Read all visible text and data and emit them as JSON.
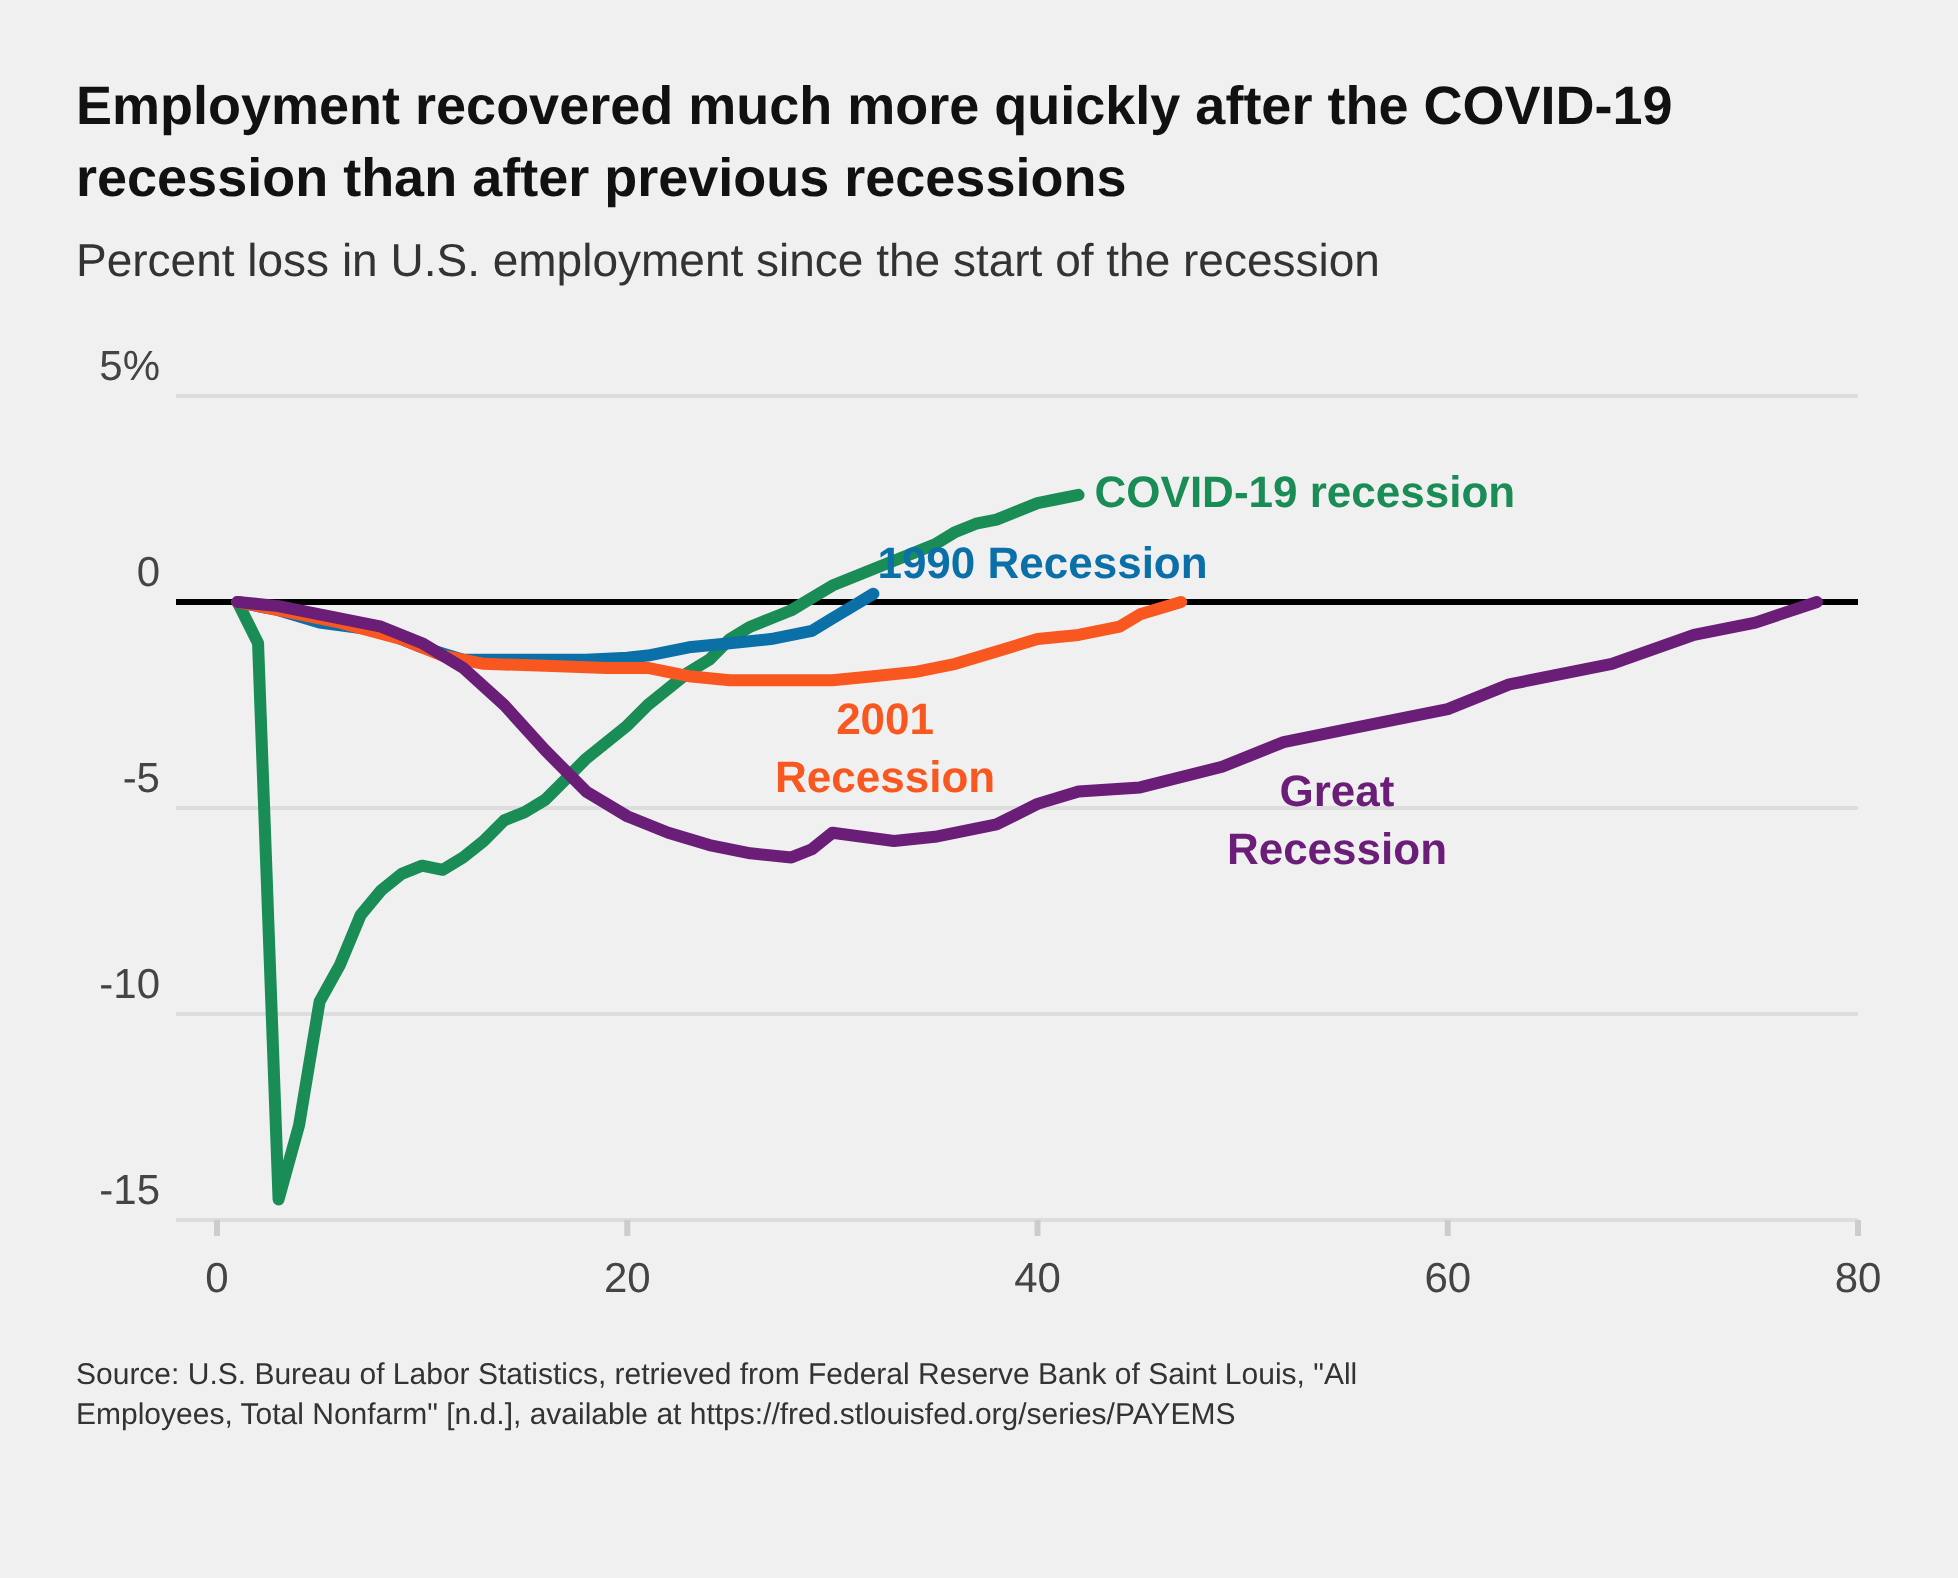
{
  "chart_data": {
    "type": "line",
    "title": "Employment recovered much more quickly after the COVID-19 recession than after previous recessions",
    "subtitle": "Percent loss in U.S. employment since the start of the recession",
    "series": [
      {
        "name": "COVID-19 recession",
        "color": "#1a8c55",
        "x": [
          1,
          2,
          3,
          4,
          5,
          6,
          7,
          8,
          9,
          10,
          11,
          12,
          13,
          14,
          15,
          16,
          17,
          18,
          19,
          20,
          21,
          22,
          23,
          24,
          25,
          26,
          27,
          28,
          29,
          30,
          31,
          32,
          33,
          34,
          35,
          36,
          37,
          38,
          39,
          40,
          41,
          42
        ],
        "values": [
          0,
          -1,
          -14.5,
          -12.7,
          -9.7,
          -8.8,
          -7.6,
          -7,
          -6.6,
          -6.4,
          -6.5,
          -6.2,
          -5.8,
          -5.3,
          -5.1,
          -4.8,
          -4.3,
          -3.8,
          -3.4,
          -3,
          -2.5,
          -2.1,
          -1.7,
          -1.4,
          -0.9,
          -0.6,
          -0.4,
          -0.2,
          0.1,
          0.4,
          0.6,
          0.8,
          1,
          1.2,
          1.4,
          1.7,
          1.9,
          2,
          2.2,
          2.4,
          2.5,
          2.6
        ]
      },
      {
        "name": "1990 Recession",
        "color": "#0b6fa8",
        "x": [
          1,
          3,
          5,
          8,
          10,
          12,
          14,
          16,
          18,
          20,
          21,
          23,
          25,
          27,
          29,
          30,
          31,
          32
        ],
        "values": [
          0,
          -0.2,
          -0.5,
          -0.7,
          -1.1,
          -1.4,
          -1.4,
          -1.4,
          -1.4,
          -1.35,
          -1.3,
          -1.1,
          -1,
          -0.9,
          -0.7,
          -0.4,
          -0.1,
          0.2
        ]
      },
      {
        "name": "2001 Recession",
        "color": "#f8581f",
        "x": [
          1,
          3,
          6,
          9,
          11,
          13,
          16,
          19,
          21,
          23,
          25,
          30,
          32,
          34,
          36,
          38,
          40,
          42,
          44,
          45,
          47
        ],
        "values": [
          0,
          -0.2,
          -0.5,
          -0.9,
          -1.3,
          -1.5,
          -1.55,
          -1.6,
          -1.6,
          -1.8,
          -1.9,
          -1.9,
          -1.8,
          -1.7,
          -1.5,
          -1.2,
          -0.9,
          -0.8,
          -0.6,
          -0.3,
          0
        ]
      },
      {
        "name": "Great Recession",
        "color": "#6b1e78",
        "x": [
          1,
          3,
          5,
          8,
          10,
          12,
          14,
          16,
          18,
          20,
          22,
          24,
          26,
          28,
          29,
          30,
          33,
          35,
          38,
          40,
          42,
          45,
          49,
          52,
          55,
          60,
          63,
          68,
          72,
          75,
          78
        ],
        "values": [
          0,
          -0.1,
          -0.3,
          -0.6,
          -1,
          -1.6,
          -2.5,
          -3.6,
          -4.6,
          -5.2,
          -5.6,
          -5.9,
          -6.1,
          -6.2,
          -6,
          -5.6,
          -5.8,
          -5.7,
          -5.4,
          -4.9,
          -4.6,
          -4.5,
          -4,
          -3.4,
          -3.1,
          -2.6,
          -2,
          -1.5,
          -0.8,
          -0.5,
          0
        ]
      }
    ],
    "xlim": [
      -2,
      80
    ],
    "xticks": [
      0,
      20,
      40,
      60,
      80
    ],
    "ylim": [
      -15,
      5
    ],
    "yticks": [
      {
        "value": 5,
        "label": "5%"
      },
      0,
      -5,
      -10,
      -15
    ],
    "grid": "y",
    "marker": "none",
    "line_style": "solid",
    "ref_lines": [
      {
        "axis": "y",
        "value": 0,
        "label": null,
        "color": "#000000"
      }
    ],
    "annotations": [
      "Source: U.S. Bureau of Labor Statistics, retrieved from Federal Reserve Bank of Saint Louis, \"All Employees, Total Nonfarm\" [n.d.], available at https://fred.stlouisfed.org/series/PAYEMS"
    ]
  }
}
